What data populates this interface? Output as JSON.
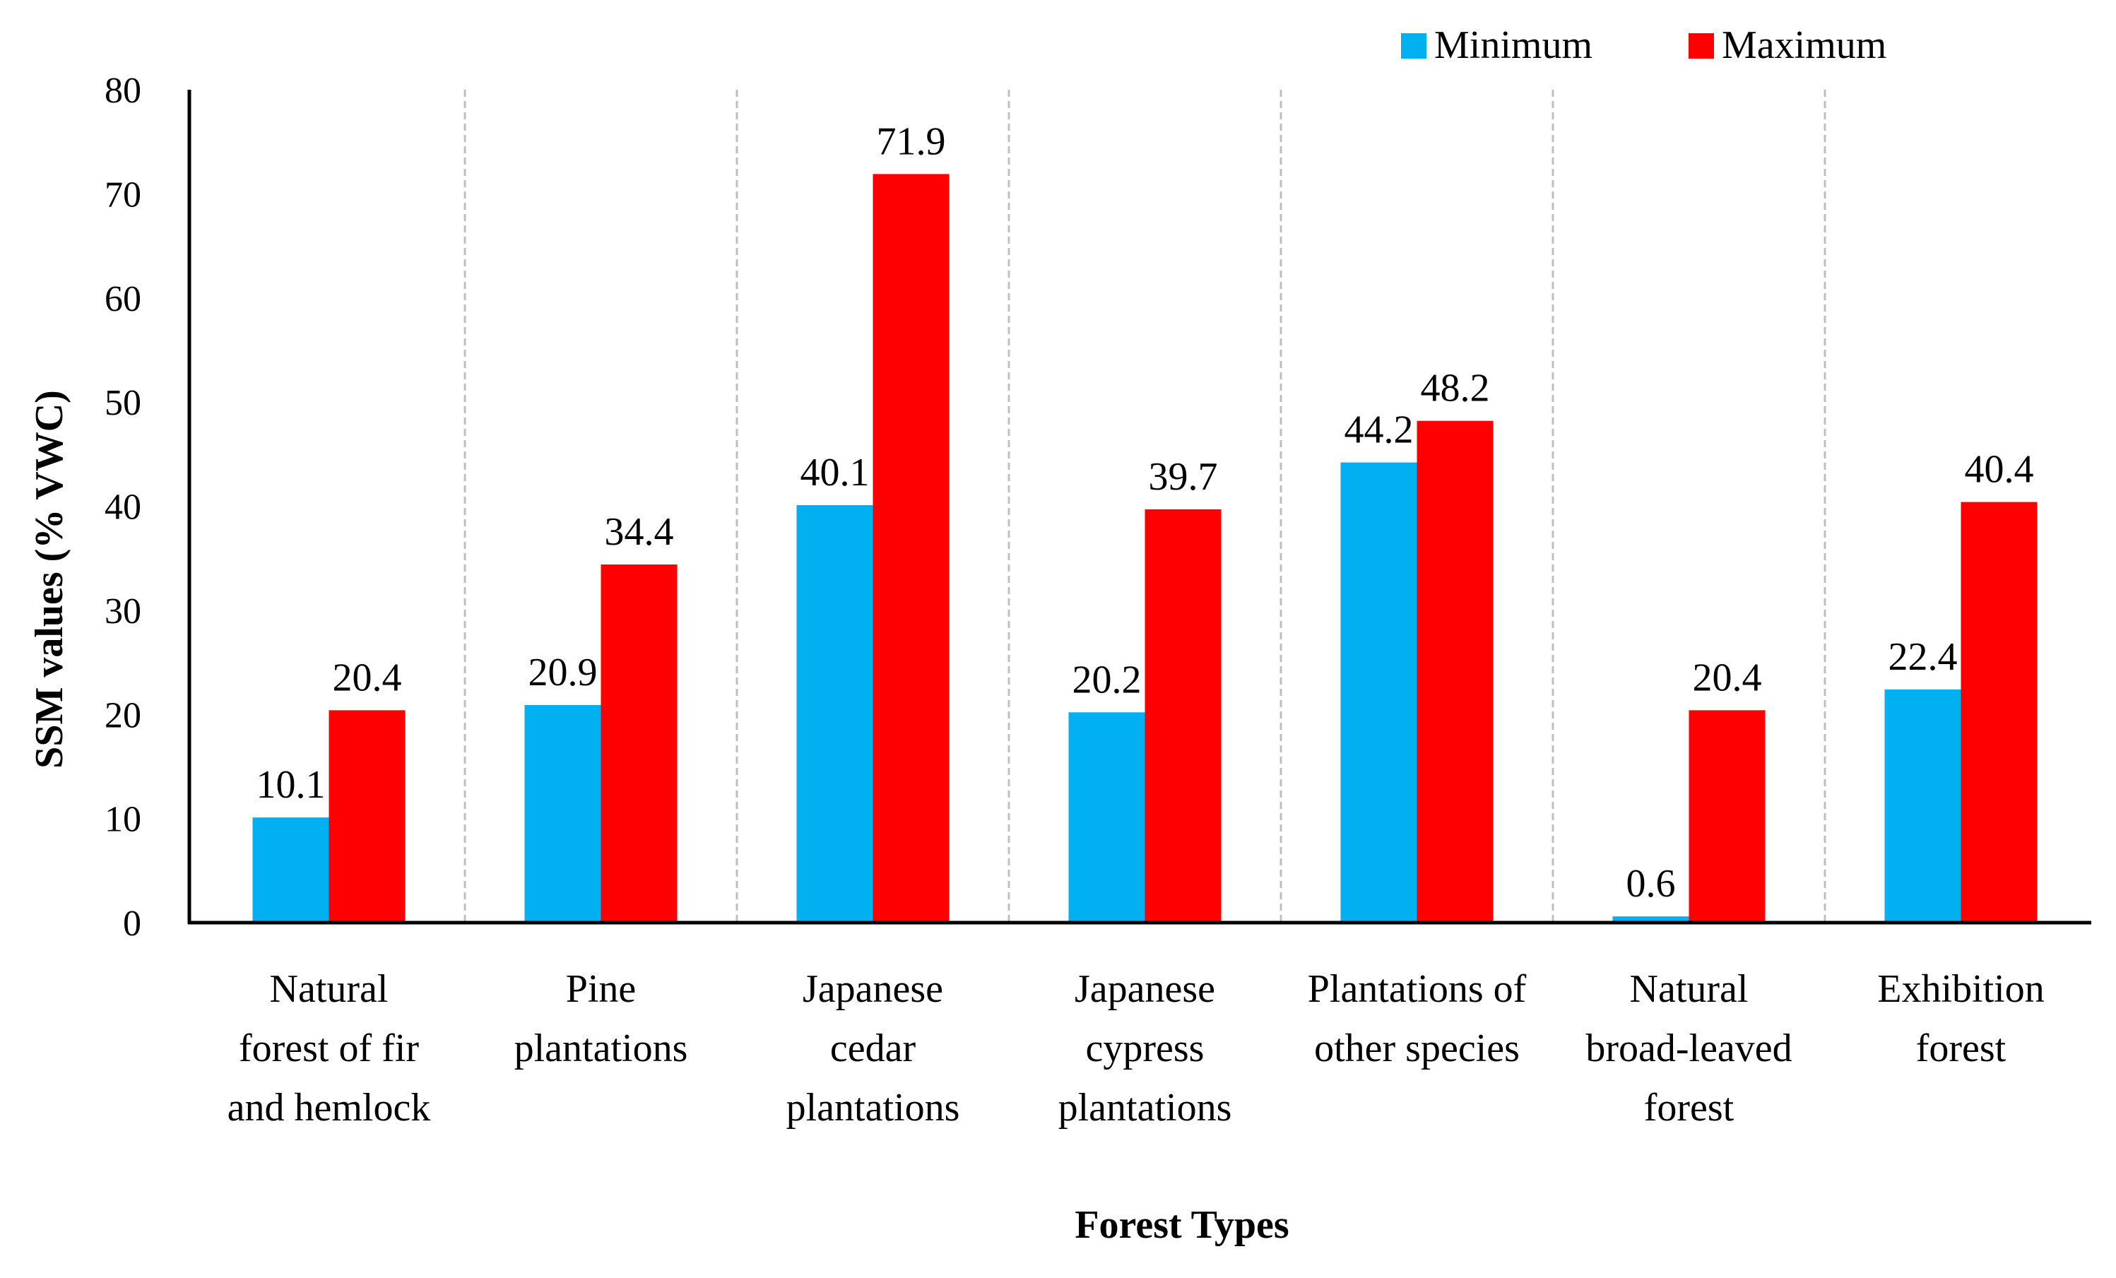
{
  "chart_data": {
    "type": "bar",
    "title": "",
    "xlabel": "Forest Types",
    "ylabel": "SSM values (% VWC)",
    "ylim": [
      0,
      80
    ],
    "yticks": [
      0,
      10,
      20,
      30,
      40,
      50,
      60,
      70,
      80
    ],
    "categories": [
      [
        "Natural",
        "forest of fir",
        "and hemlock"
      ],
      [
        "Pine",
        "plantations"
      ],
      [
        "Japanese",
        "cedar",
        "plantations"
      ],
      [
        "Japanese",
        "cypress",
        "plantations"
      ],
      [
        "Plantations of",
        "other species"
      ],
      [
        "Natural",
        "broad-leaved",
        "forest"
      ],
      [
        "Exhibition",
        "forest"
      ]
    ],
    "series": [
      {
        "name": "Minimum",
        "color": "#00B0F0",
        "values": [
          10.1,
          20.9,
          40.1,
          20.2,
          44.2,
          0.6,
          22.4
        ],
        "labels": [
          "10.1",
          "20.9",
          "40.1",
          "20.2",
          "44.2",
          "0.6",
          "22.4"
        ]
      },
      {
        "name": "Maximum",
        "color": "#FF0000",
        "values": [
          20.4,
          34.4,
          71.9,
          39.7,
          48.2,
          20.4,
          40.4
        ],
        "labels": [
          "20.4",
          "34.4",
          "71.9",
          "39.7",
          "48.2",
          "20.4",
          "40.4"
        ]
      }
    ],
    "legend_position": "top-right",
    "grid": "vertical-dashed-separators"
  }
}
